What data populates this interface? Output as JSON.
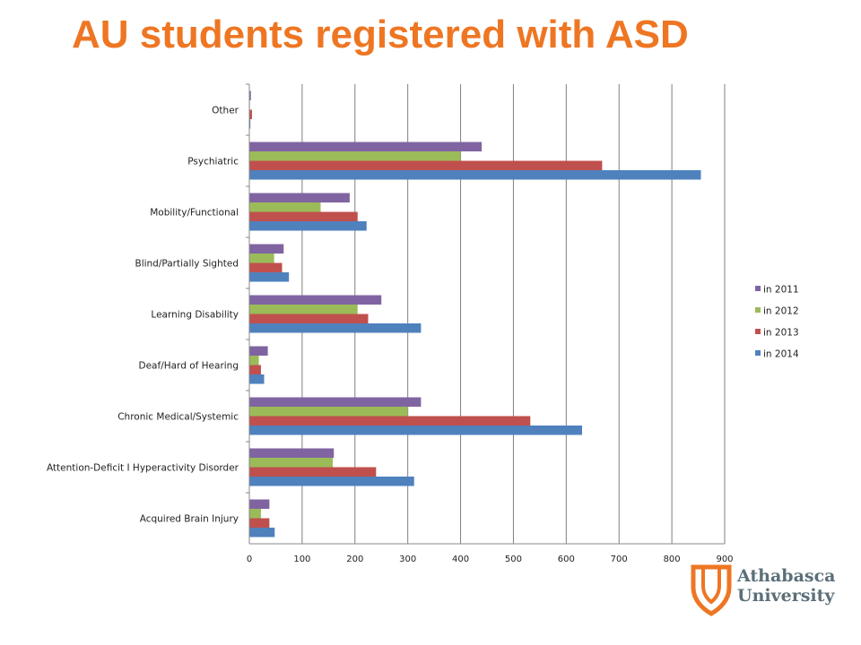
{
  "title": "AU students registered with ASD",
  "logo": {
    "line1": "Athabasca",
    "line2": "University"
  },
  "colors": {
    "accent": "#EE7623",
    "series": [
      "#8064A2",
      "#9BBB59",
      "#C0504D",
      "#4F81BD"
    ],
    "grid": "#7f7f7f"
  },
  "chart_data": {
    "type": "bar",
    "orientation": "horizontal",
    "title": "AU students registered with ASD",
    "categories": [
      "Other",
      "Psychiatric",
      "Mobility/Functional",
      "Blind/Partially Sighted",
      "Learning Disability",
      "Deaf/Hard of Hearing",
      "Chronic Medical/Systemic",
      "Attention-Deficit I Hyperactivity Disorder",
      "Acquired Brain Injury"
    ],
    "series": [
      {
        "name": "in 2011",
        "color": "#8064A2",
        "values": [
          3,
          440,
          190,
          65,
          250,
          35,
          325,
          160,
          38
        ]
      },
      {
        "name": "in 2012",
        "color": "#9BBB59",
        "values": [
          1,
          400,
          135,
          47,
          205,
          18,
          300,
          158,
          22
        ]
      },
      {
        "name": "in 2013",
        "color": "#C0504D",
        "values": [
          5,
          668,
          205,
          62,
          225,
          22,
          532,
          240,
          38
        ]
      },
      {
        "name": "in 2014",
        "color": "#4F81BD",
        "values": [
          2,
          855,
          222,
          75,
          325,
          28,
          630,
          312,
          48
        ]
      }
    ],
    "xlim": [
      0,
      900
    ],
    "xticks": [
      "0",
      "100",
      "200",
      "300",
      "400",
      "500",
      "600",
      "700",
      "800",
      "900"
    ],
    "xlabel": "",
    "ylabel": "",
    "grid": true,
    "legend": "right"
  }
}
